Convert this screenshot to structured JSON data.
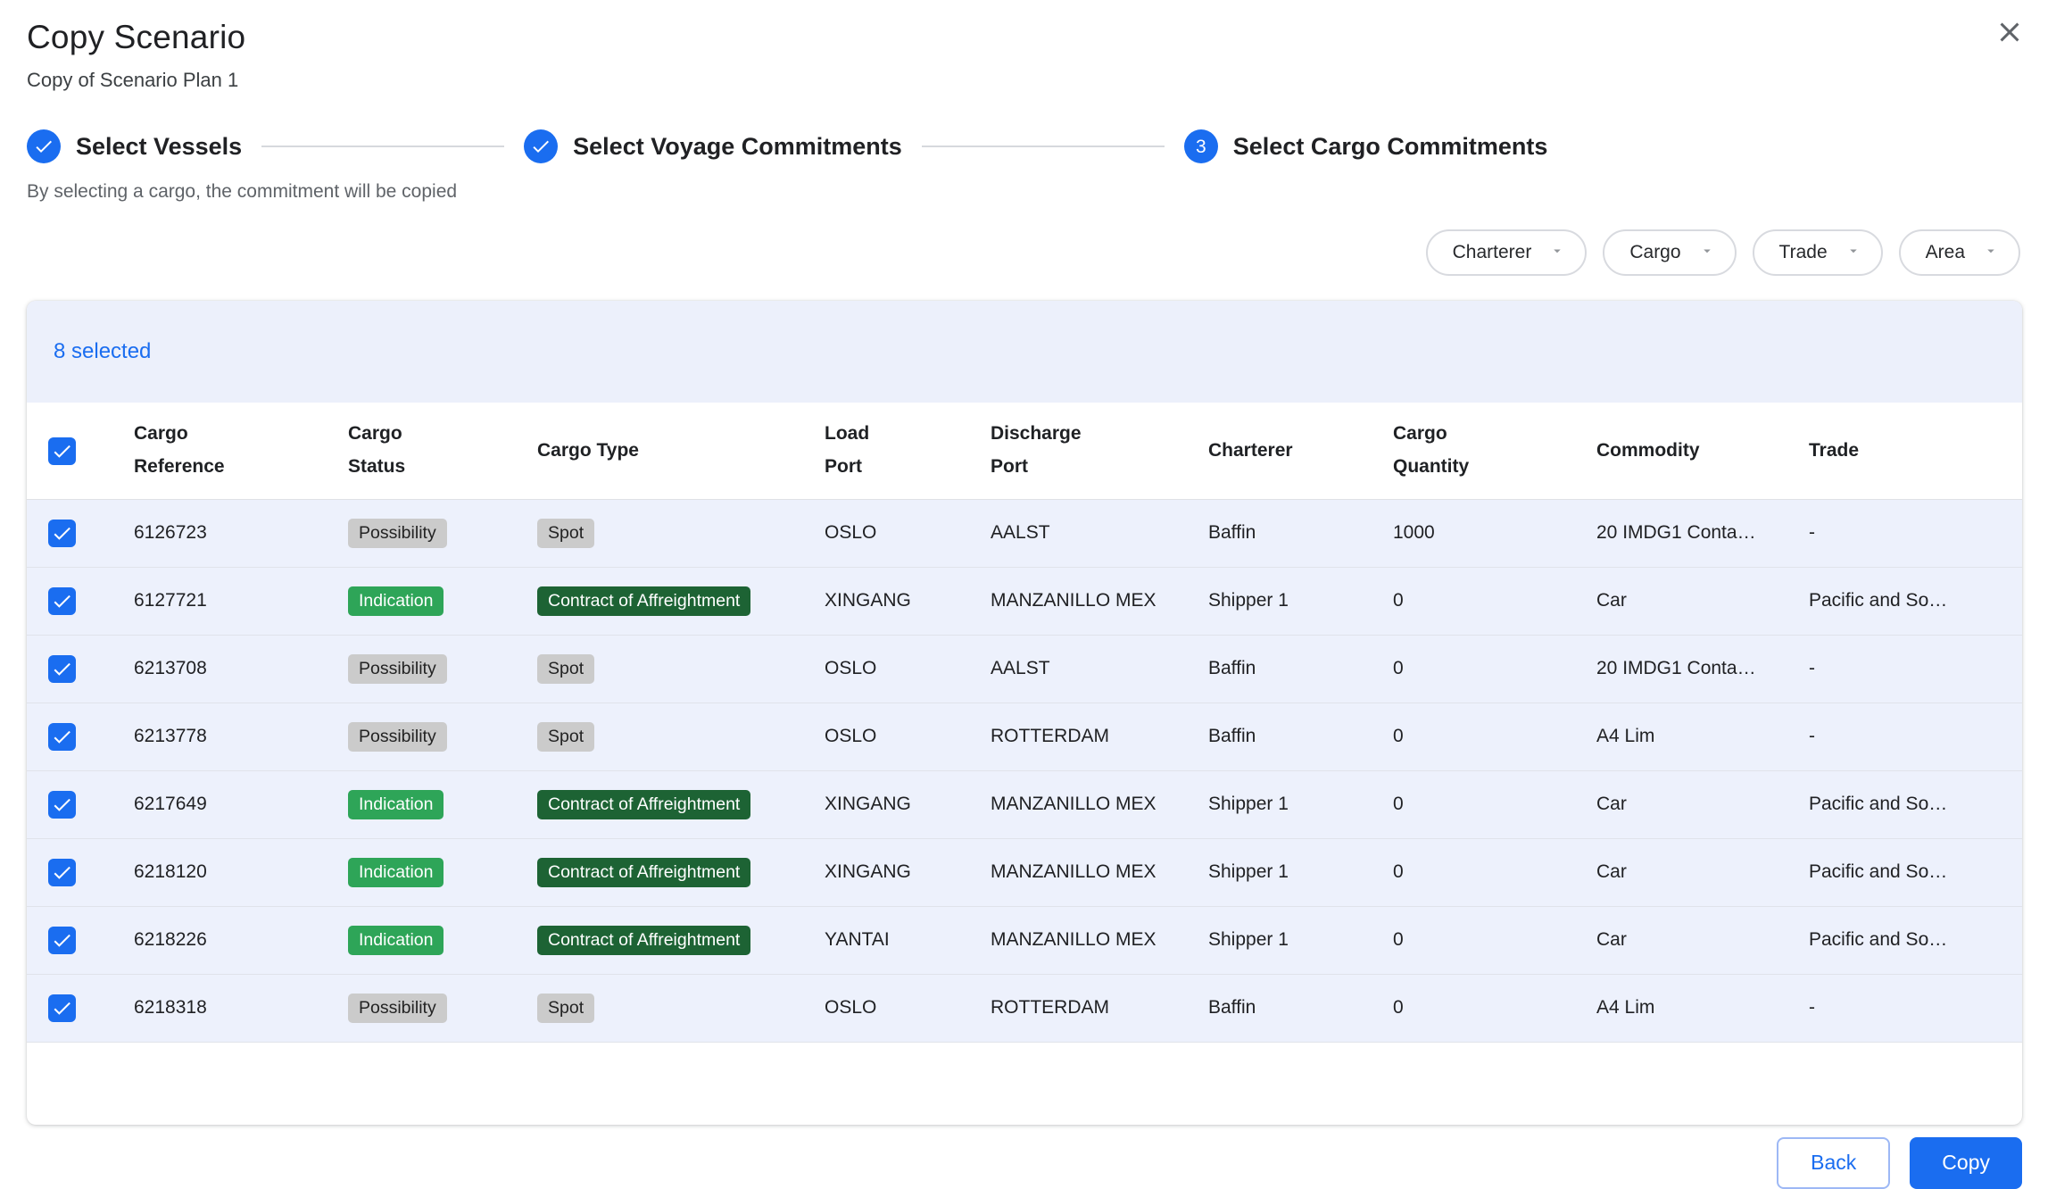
{
  "dialog": {
    "title": "Copy Scenario",
    "subtitle": "Copy of Scenario Plan 1"
  },
  "stepper": {
    "steps": [
      {
        "label": "Select Vessels",
        "status": "completed"
      },
      {
        "label": "Select Voyage Commitments",
        "status": "completed"
      },
      {
        "label": "Select Cargo Commitments",
        "status": "active",
        "number": "3"
      }
    ],
    "helper_text": "By selecting a cargo, the commitment will be copied"
  },
  "filters": {
    "items": [
      {
        "label": "Charterer"
      },
      {
        "label": "Cargo"
      },
      {
        "label": "Trade"
      },
      {
        "label": "Area"
      }
    ]
  },
  "selection": {
    "count_text": "8 selected"
  },
  "table": {
    "select_all_checked": true,
    "headers": [
      "Cargo\nReference",
      "Cargo\nStatus",
      "Cargo Type",
      "Load\nPort",
      "Discharge\nPort",
      "Charterer",
      "Cargo\nQuantity",
      "Commodity",
      "Trade"
    ],
    "row_keys": [
      "cargo_reference",
      "cargo_status",
      "cargo_type",
      "load_port",
      "discharge_port",
      "charterer",
      "cargo_quantity",
      "commodity",
      "trade"
    ],
    "chip_columns": [
      "cargo_status",
      "cargo_type"
    ],
    "rows": [
      {
        "checked": true,
        "cargo_reference": "6126723",
        "cargo_status": "Possibility",
        "cargo_type": "Spot",
        "load_port": "OSLO",
        "discharge_port": "AALST",
        "charterer": "Baffin",
        "cargo_quantity": "1000",
        "commodity": "20 IMDG1 Conta…",
        "trade": "-"
      },
      {
        "checked": true,
        "cargo_reference": "6127721",
        "cargo_status": "Indication",
        "cargo_type": "Contract of Affreightment",
        "load_port": "XINGANG",
        "discharge_port": "MANZANILLO MEX",
        "charterer": "Shipper 1",
        "cargo_quantity": "0",
        "commodity": "Car",
        "trade": "Pacific and So…"
      },
      {
        "checked": true,
        "cargo_reference": "6213708",
        "cargo_status": "Possibility",
        "cargo_type": "Spot",
        "load_port": "OSLO",
        "discharge_port": "AALST",
        "charterer": "Baffin",
        "cargo_quantity": "0",
        "commodity": "20 IMDG1 Conta…",
        "trade": "-"
      },
      {
        "checked": true,
        "cargo_reference": "6213778",
        "cargo_status": "Possibility",
        "cargo_type": "Spot",
        "load_port": "OSLO",
        "discharge_port": "ROTTERDAM",
        "charterer": "Baffin",
        "cargo_quantity": "0",
        "commodity": "A4 Lim",
        "trade": "-"
      },
      {
        "checked": true,
        "cargo_reference": "6217649",
        "cargo_status": "Indication",
        "cargo_type": "Contract of Affreightment",
        "load_port": "XINGANG",
        "discharge_port": "MANZANILLO MEX",
        "charterer": "Shipper 1",
        "cargo_quantity": "0",
        "commodity": "Car",
        "trade": "Pacific and So…"
      },
      {
        "checked": true,
        "cargo_reference": "6218120",
        "cargo_status": "Indication",
        "cargo_type": "Contract of Affreightment",
        "load_port": "XINGANG",
        "discharge_port": "MANZANILLO MEX",
        "charterer": "Shipper 1",
        "cargo_quantity": "0",
        "commodity": "Car",
        "trade": "Pacific and So…"
      },
      {
        "checked": true,
        "cargo_reference": "6218226",
        "cargo_status": "Indication",
        "cargo_type": "Contract of Affreightment",
        "load_port": "YANTAI",
        "discharge_port": "MANZANILLO MEX",
        "charterer": "Shipper 1",
        "cargo_quantity": "0",
        "commodity": "Car",
        "trade": "Pacific and So…"
      },
      {
        "checked": true,
        "cargo_reference": "6218318",
        "cargo_status": "Possibility",
        "cargo_type": "Spot",
        "load_port": "OSLO",
        "discharge_port": "ROTTERDAM",
        "charterer": "Baffin",
        "cargo_quantity": "0",
        "commodity": "A4 Lim",
        "trade": "-"
      }
    ]
  },
  "chip_styles": {
    "Possibility": "gray",
    "Spot": "gray",
    "Indication": "green",
    "Contract of Affreightment": "dark-green"
  },
  "colors": {
    "accent_blue": "#1a6df0",
    "banner_bg": "#ecf0fb",
    "selected_row_bg": "#edf1fc",
    "chip_gray_bg": "#cbcbcb",
    "chip_green_bg": "#2ea558",
    "chip_dark_green_bg": "#1d6334"
  },
  "footer": {
    "back_label": "Back",
    "copy_label": "Copy"
  }
}
